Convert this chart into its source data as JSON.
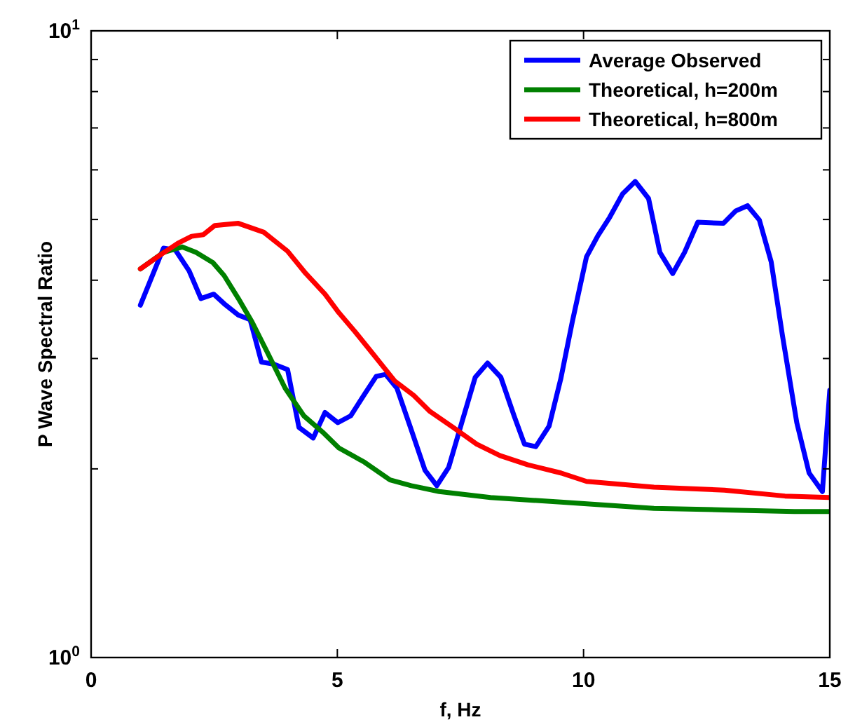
{
  "chart_data": {
    "type": "line",
    "xlabel": "f, Hz",
    "ylabel": "P Wave Spectral Ratio",
    "log": "y",
    "grid": false,
    "legend": "top right",
    "line_style": "solid",
    "marker": "none",
    "xlim": [
      0,
      15
    ],
    "xticks": [
      0,
      5,
      10,
      15
    ],
    "ylim": [
      1,
      10
    ],
    "yticks": [
      {
        "value": 1,
        "label": "10$^{0}$"
      },
      {
        "value": 2,
        "label": null
      },
      {
        "value": 3,
        "label": null
      },
      {
        "value": 4,
        "label": null
      },
      {
        "value": 5,
        "label": null
      },
      {
        "value": 6,
        "label": null
      },
      {
        "value": 7,
        "label": null
      },
      {
        "value": 8,
        "label": null
      },
      {
        "value": 9,
        "label": null
      },
      {
        "value": 10,
        "label": "10$^{1}$"
      }
    ],
    "series": [
      {
        "name": "Average Observed",
        "color": "#0000ff",
        "x": [
          1.0,
          1.47,
          1.71,
          1.99,
          2.23,
          2.49,
          2.7,
          2.99,
          3.23,
          3.46,
          3.7,
          3.99,
          4.22,
          4.51,
          4.75,
          5.01,
          5.27,
          5.55,
          5.79,
          5.98,
          6.21,
          6.5,
          6.78,
          7.02,
          7.26,
          7.54,
          7.8,
          8.05,
          8.32,
          8.59,
          8.8,
          9.03,
          9.3,
          9.54,
          9.77,
          10.06,
          10.29,
          10.53,
          10.79,
          11.05,
          11.32,
          11.55,
          11.81,
          12.05,
          12.32,
          12.84,
          13.09,
          13.33,
          13.57,
          13.81,
          14.04,
          14.33,
          14.58,
          14.85,
          15.0
        ],
        "values": [
          3.65,
          4.5,
          4.47,
          4.14,
          3.74,
          3.8,
          3.67,
          3.52,
          3.46,
          2.96,
          2.94,
          2.88,
          2.33,
          2.24,
          2.46,
          2.37,
          2.43,
          2.63,
          2.81,
          2.83,
          2.69,
          2.31,
          1.99,
          1.88,
          2.01,
          2.39,
          2.8,
          2.95,
          2.8,
          2.43,
          2.19,
          2.17,
          2.34,
          2.79,
          3.43,
          4.36,
          4.71,
          5.04,
          5.49,
          5.75,
          5.4,
          4.43,
          4.1,
          4.43,
          4.95,
          4.93,
          5.16,
          5.26,
          4.99,
          4.28,
          3.26,
          2.37,
          1.97,
          1.84,
          2.67
        ]
      },
      {
        "name": "Theoretical, h=200m",
        "color": "#008000",
        "x": [
          1.0,
          1.47,
          1.85,
          2.13,
          2.47,
          2.7,
          2.99,
          3.27,
          3.56,
          3.94,
          4.32,
          4.7,
          5.03,
          5.55,
          6.07,
          6.5,
          7.07,
          8.11,
          9.54,
          11.43,
          12.86,
          14.28,
          15.0
        ],
        "values": [
          4.17,
          4.43,
          4.52,
          4.43,
          4.27,
          4.07,
          3.74,
          3.43,
          3.09,
          2.69,
          2.43,
          2.29,
          2.16,
          2.05,
          1.92,
          1.88,
          1.84,
          1.8,
          1.77,
          1.73,
          1.72,
          1.71,
          1.71
        ]
      },
      {
        "name": "Theoretical, h=800m",
        "color": "#ff0000",
        "x": [
          1.0,
          1.37,
          1.76,
          2.04,
          2.28,
          2.51,
          2.99,
          3.51,
          3.99,
          4.36,
          4.75,
          5.03,
          5.36,
          5.74,
          6.17,
          6.55,
          6.88,
          7.35,
          7.83,
          8.3,
          8.87,
          9.54,
          10.06,
          11.43,
          12.86,
          14.09,
          15.0
        ],
        "values": [
          4.17,
          4.37,
          4.58,
          4.7,
          4.73,
          4.89,
          4.93,
          4.77,
          4.45,
          4.1,
          3.8,
          3.55,
          3.31,
          3.04,
          2.76,
          2.62,
          2.47,
          2.33,
          2.19,
          2.1,
          2.03,
          1.97,
          1.91,
          1.87,
          1.85,
          1.81,
          1.8
        ]
      }
    ]
  }
}
